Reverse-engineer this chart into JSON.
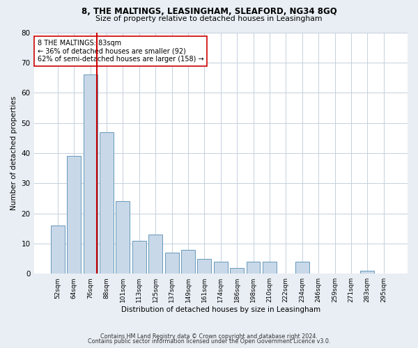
{
  "title1": "8, THE MALTINGS, LEASINGHAM, SLEAFORD, NG34 8GQ",
  "title2": "Size of property relative to detached houses in Leasingham",
  "xlabel": "Distribution of detached houses by size in Leasingham",
  "ylabel": "Number of detached properties",
  "categories": [
    "52sqm",
    "64sqm",
    "76sqm",
    "88sqm",
    "101sqm",
    "113sqm",
    "125sqm",
    "137sqm",
    "149sqm",
    "161sqm",
    "174sqm",
    "186sqm",
    "198sqm",
    "210sqm",
    "222sqm",
    "234sqm",
    "246sqm",
    "259sqm",
    "271sqm",
    "283sqm",
    "295sqm"
  ],
  "values": [
    16,
    39,
    66,
    47,
    24,
    11,
    13,
    7,
    8,
    5,
    4,
    2,
    4,
    4,
    0,
    4,
    0,
    0,
    0,
    1,
    0
  ],
  "bar_color": "#c8d8e8",
  "bar_edge_color": "#6699bb",
  "vline_pos": 2.42,
  "vline_color": "#cc0000",
  "annotation_text": "8 THE MALTINGS: 83sqm\n← 36% of detached houses are smaller (92)\n62% of semi-detached houses are larger (158) →",
  "annotation_box_facecolor": "#ffffff",
  "annotation_box_edgecolor": "#cc0000",
  "ylim": [
    0,
    80
  ],
  "yticks": [
    0,
    10,
    20,
    30,
    40,
    50,
    60,
    70,
    80
  ],
  "footer1": "Contains HM Land Registry data © Crown copyright and database right 2024.",
  "footer2": "Contains public sector information licensed under the Open Government Licence v3.0.",
  "bg_color": "#e8eef4",
  "plot_bg_color": "#ffffff",
  "grid_color": "#c5d0dc"
}
